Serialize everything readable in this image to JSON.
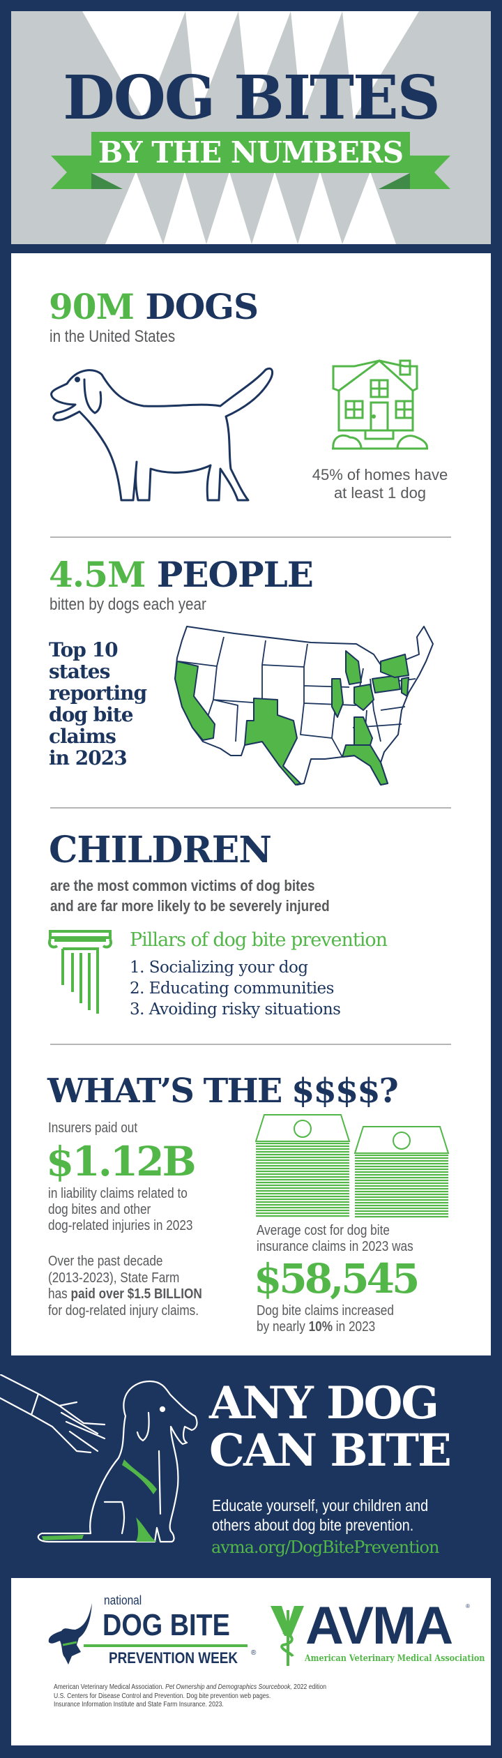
{
  "header": {
    "title": "DOG BITES",
    "ribbon": "BY THE NUMBERS"
  },
  "dogs": {
    "number": "90M",
    "label": "DOGS",
    "sub": "in the United States",
    "homes_line1": "45% of homes have",
    "homes_line2": "at least 1 dog",
    "icons": [
      "dog-icon",
      "house-icon"
    ]
  },
  "people": {
    "number": "4.5M",
    "label": "PEOPLE",
    "sub": "bitten by dogs each year",
    "top_lines": [
      "Top 10",
      "states",
      "reporting",
      "dog bite",
      "claims",
      "in 2023"
    ]
  },
  "children": {
    "title": "CHILDREN",
    "line1": "are the most common victims of dog bites",
    "line2": "and are far more likely to be severely injured",
    "pillars_title": "Pillars of dog bite prevention",
    "pillars": [
      "1. Socializing your dog",
      "2. Educating communities",
      "3. Avoiding risky situations"
    ]
  },
  "money": {
    "title": "WHAT’S THE $$$$?",
    "insurers": "Insurers paid out",
    "amount": "$1.12B",
    "amount_lines": [
      "in liability claims related to",
      "dog bites and other",
      "dog-related injuries in 2023"
    ],
    "decade_lines": [
      "Over the past decade",
      "(2013-2023), State Farm"
    ],
    "decade_pre": "has ",
    "decade_bold": "paid over $1.5 BILLION",
    "decade_last": "for dog-related injury claims.",
    "avg_lines": [
      "Average cost for dog bite",
      "insurance claims in 2023 was"
    ],
    "avg_amount": "$58,545",
    "increase_line1": "Dog bite claims increased",
    "increase_pre": "by nearly ",
    "increase_bold": "10%",
    "increase_post": " in 2023"
  },
  "cta": {
    "line1": "ANY DOG",
    "line2": "CAN BITE",
    "text1": "Educate yourself, your children and",
    "text2": "others about dog bite prevention.",
    "url": "avma.org/DogBitePrevention"
  },
  "footer": {
    "dbpw_national": "national",
    "dbpw_main": "DOG BITE",
    "dbpw_sub": "PREVENTION WEEK",
    "avma": "AVMA",
    "avma_full": "American Veterinary Medical Association",
    "citations": [
      {
        "pre": "American Veterinary Medical Association. ",
        "italic": "Pet Ownership and Demographics Sourcebook,",
        "post": " 2022 edition"
      },
      {
        "pre": "U.S. Centers for Disease Control and Prevention. Dog bite prevention web pages.",
        "italic": "",
        "post": ""
      },
      {
        "pre": "Insurance Information Institute and State Farm Insurance. 2023.",
        "italic": "",
        "post": ""
      }
    ]
  },
  "colors": {
    "navy": "#1c355e",
    "green": "#52b748",
    "gray": "#c5cacc",
    "text_gray": "#58595b"
  }
}
